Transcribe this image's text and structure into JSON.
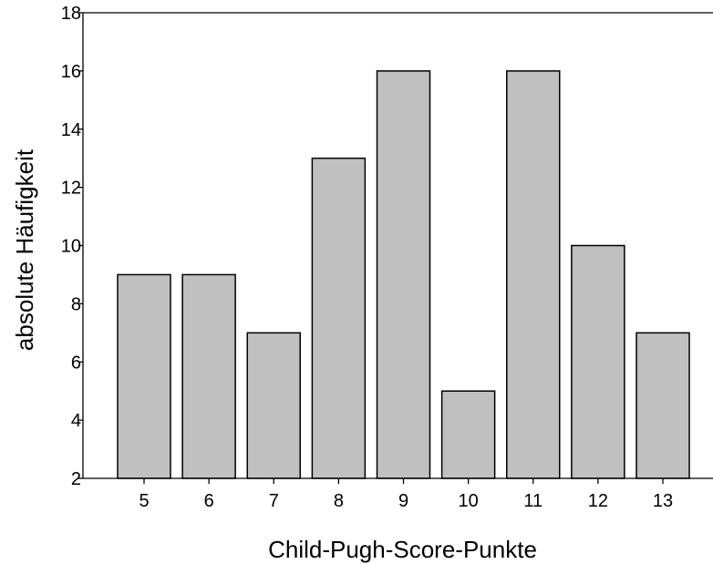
{
  "chart_data": {
    "type": "bar",
    "title": "",
    "xlabel": "Child-Pugh-Score-Punkte",
    "ylabel": "absolute Häufigkeit",
    "categories": [
      "5",
      "6",
      "7",
      "8",
      "9",
      "10",
      "11",
      "12",
      "13"
    ],
    "values": [
      9,
      9,
      7,
      13,
      16,
      5,
      16,
      10,
      7
    ],
    "ylim": [
      2,
      18
    ],
    "yticks": [
      2,
      4,
      6,
      8,
      10,
      12,
      14,
      16,
      18
    ],
    "grid": false,
    "legend": "none",
    "colors": {
      "bar_fill": "#c0c0c0",
      "bar_stroke": "#000000",
      "axis": "#000000",
      "background": "#ffffff"
    }
  }
}
